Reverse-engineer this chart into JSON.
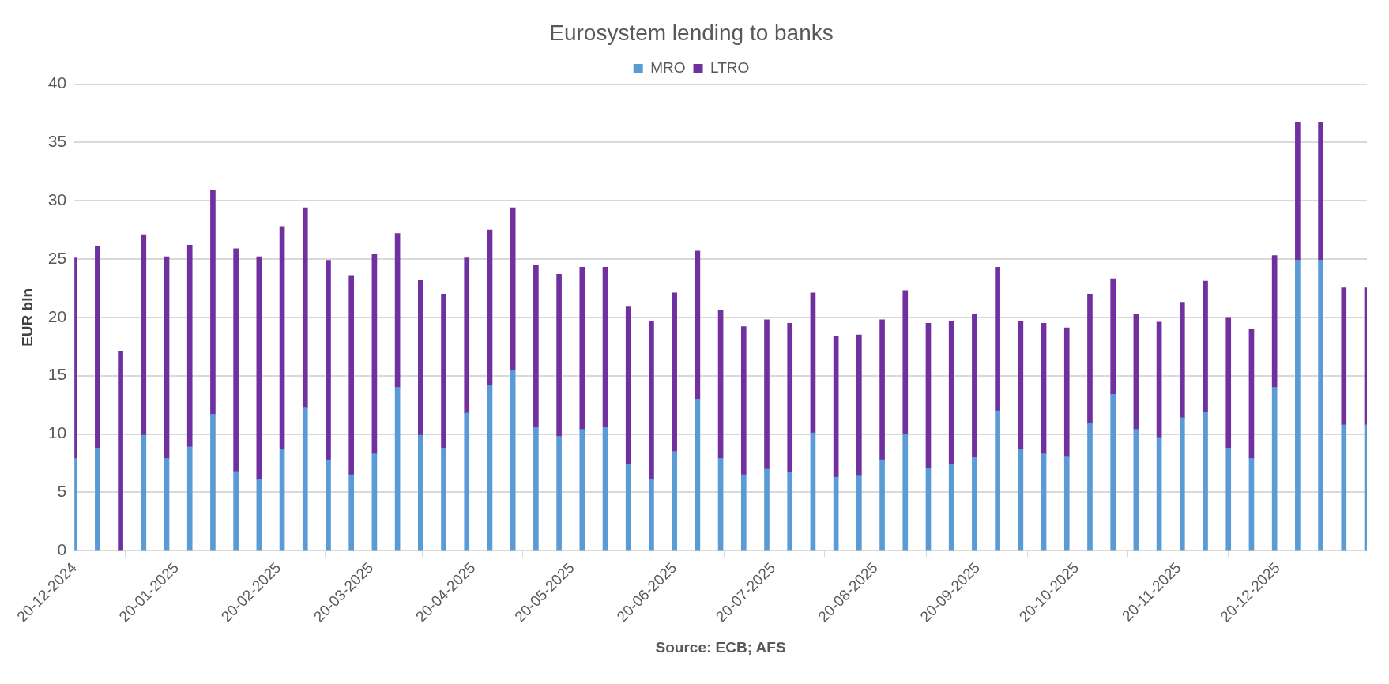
{
  "chart_data": {
    "type": "bar",
    "title": "Eurosystem lending to banks",
    "ylabel": "EUR bln",
    "annotations": [
      "Source: ECB; AFS"
    ],
    "stacked": true,
    "legend": "top",
    "grid": "y",
    "x": [
      "2024-12-20",
      "2024-12-27",
      "2025-01-03",
      "2025-01-10",
      "2025-01-17",
      "2025-01-24",
      "2025-01-31",
      "2025-02-07",
      "2025-02-14",
      "2025-02-21",
      "2025-02-28",
      "2025-03-07",
      "2025-03-14",
      "2025-03-21",
      "2025-03-28",
      "2025-04-04",
      "2025-04-11",
      "2025-04-18",
      "2025-04-25",
      "2025-05-02",
      "2025-05-09",
      "2025-05-16",
      "2025-05-23",
      "2025-05-30",
      "2025-06-06",
      "2025-06-13",
      "2025-06-20",
      "2025-06-27",
      "2025-07-04",
      "2025-07-11",
      "2025-07-18",
      "2025-07-25",
      "2025-08-01",
      "2025-08-08",
      "2025-08-15",
      "2025-08-22",
      "2025-08-29",
      "2025-09-05",
      "2025-09-12",
      "2025-09-19",
      "2025-09-26",
      "2025-10-03",
      "2025-10-10",
      "2025-10-17",
      "2025-10-24",
      "2025-10-31",
      "2025-11-07",
      "2025-11-14",
      "2025-11-21",
      "2025-11-28",
      "2025-12-05",
      "2025-12-12",
      "2025-12-19",
      "2025-12-26",
      "2026-01-02",
      "2026-01-09",
      "2026-01-16"
    ],
    "xlim": [
      "2024-12-20",
      "2026-01-16"
    ],
    "xticks": [
      {
        "value": "2024-12-20",
        "label": "20-12-2024"
      },
      {
        "value": "2025-01-20",
        "label": "20-01-2025"
      },
      {
        "value": "2025-02-20",
        "label": "20-02-2025"
      },
      {
        "value": "2025-03-20",
        "label": "20-03-2025"
      },
      {
        "value": "2025-04-20",
        "label": "20-04-2025"
      },
      {
        "value": "2025-05-20",
        "label": "20-05-2025"
      },
      {
        "value": "2025-06-20",
        "label": "20-06-2025"
      },
      {
        "value": "2025-07-20",
        "label": "20-07-2025"
      },
      {
        "value": "2025-08-20",
        "label": "20-08-2025"
      },
      {
        "value": "2025-09-20",
        "label": "20-09-2025"
      },
      {
        "value": "2025-10-20",
        "label": "20-10-2025"
      },
      {
        "value": "2025-11-20",
        "label": "20-11-2025"
      },
      {
        "value": "2025-12-20",
        "label": "20-12-2025"
      }
    ],
    "ylim": [
      0,
      40
    ],
    "yticks": [
      0,
      5,
      10,
      15,
      20,
      25,
      30,
      35,
      40
    ],
    "series": [
      {
        "name": "MRO",
        "color": "#5b9bd5",
        "values": [
          7.9,
          8.8,
          0,
          9.9,
          7.9,
          8.9,
          11.7,
          6.8,
          6.1,
          8.7,
          12.3,
          7.8,
          6.5,
          8.3,
          14.0,
          9.9,
          8.8,
          11.8,
          14.2,
          15.5,
          10.6,
          9.8,
          10.4,
          10.6,
          7.4,
          6.1,
          8.5,
          13.0,
          7.9,
          6.5,
          7.0,
          6.7,
          10.1,
          6.3,
          6.4,
          7.8,
          10.0,
          7.1,
          7.4,
          8.0,
          12.0,
          8.7,
          8.3,
          8.1,
          10.9,
          13.4,
          10.4,
          9.7,
          11.4,
          11.9,
          8.8,
          7.9,
          14.0,
          24.9,
          24.9,
          10.8,
          10.8
        ]
      },
      {
        "name": "LTRO",
        "color": "#7030a0",
        "values": [
          17.2,
          17.3,
          17.1,
          17.2,
          17.3,
          17.3,
          19.2,
          19.1,
          19.1,
          19.1,
          17.1,
          17.1,
          17.1,
          17.1,
          13.2,
          13.3,
          13.2,
          13.3,
          13.3,
          13.9,
          13.9,
          13.9,
          13.9,
          13.7,
          13.5,
          13.6,
          13.6,
          12.7,
          12.7,
          12.7,
          12.8,
          12.8,
          12.0,
          12.1,
          12.1,
          12.0,
          12.3,
          12.4,
          12.3,
          12.3,
          12.3,
          11.0,
          11.2,
          11.0,
          11.1,
          9.9,
          9.9,
          9.9,
          9.9,
          11.2,
          11.2,
          11.1,
          11.3,
          11.8,
          11.8,
          11.8,
          11.8
        ]
      }
    ]
  }
}
